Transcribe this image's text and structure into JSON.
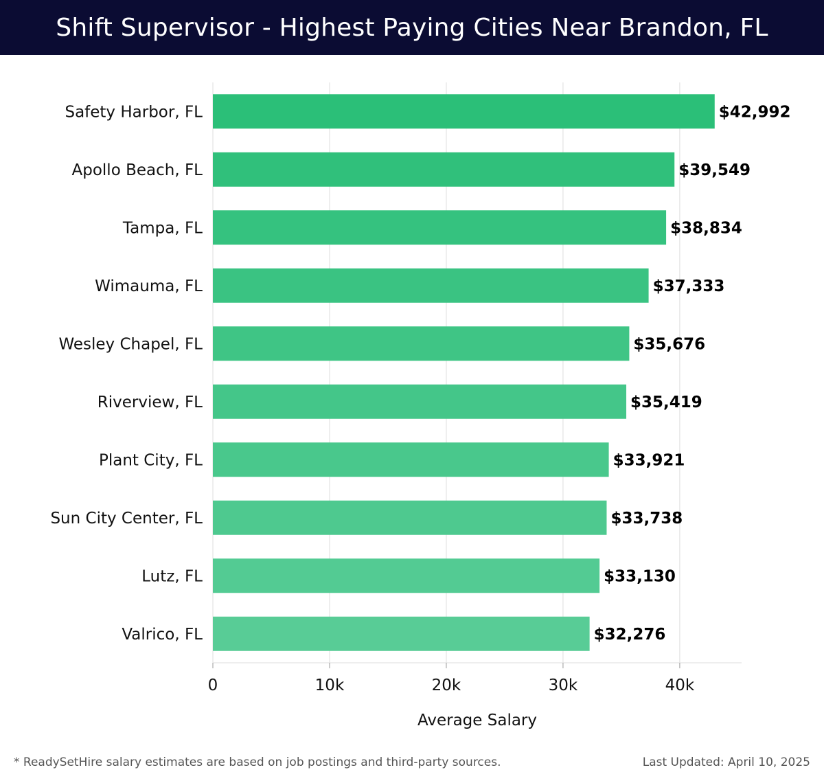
{
  "header": {
    "title": "Shift Supervisor - Highest Paying Cities Near Brandon, FL"
  },
  "chart_data": {
    "type": "bar",
    "orientation": "horizontal",
    "categories": [
      "Safety Harbor, FL",
      "Apollo Beach, FL",
      "Tampa, FL",
      "Wimauma, FL",
      "Wesley Chapel, FL",
      "Riverview, FL",
      "Plant City, FL",
      "Sun City Center, FL",
      "Lutz, FL",
      "Valrico, FL"
    ],
    "values": [
      42992,
      39549,
      38834,
      37333,
      35676,
      35419,
      33921,
      33738,
      33130,
      32276
    ],
    "value_labels": [
      "$42,992",
      "$39,549",
      "$38,834",
      "$37,333",
      "$35,676",
      "$35,419",
      "$33,921",
      "$33,738",
      "$33,130",
      "$32,276"
    ],
    "xlabel": "Average Salary",
    "ylabel": "",
    "xlim": [
      0,
      45300
    ],
    "xticks": [
      0,
      10000,
      20000,
      30000,
      40000
    ],
    "xtick_labels": [
      "0",
      "10k",
      "20k",
      "30k",
      "40k"
    ],
    "grid": "vertical",
    "colors": {
      "top": "#2bbf78",
      "bottom": "#58cc96",
      "gridline": "#dddddd"
    }
  },
  "footer": {
    "note": "* ReadySetHire salary estimates are based on job postings and third-party sources.",
    "updated": "Last Updated: April 10, 2025"
  }
}
